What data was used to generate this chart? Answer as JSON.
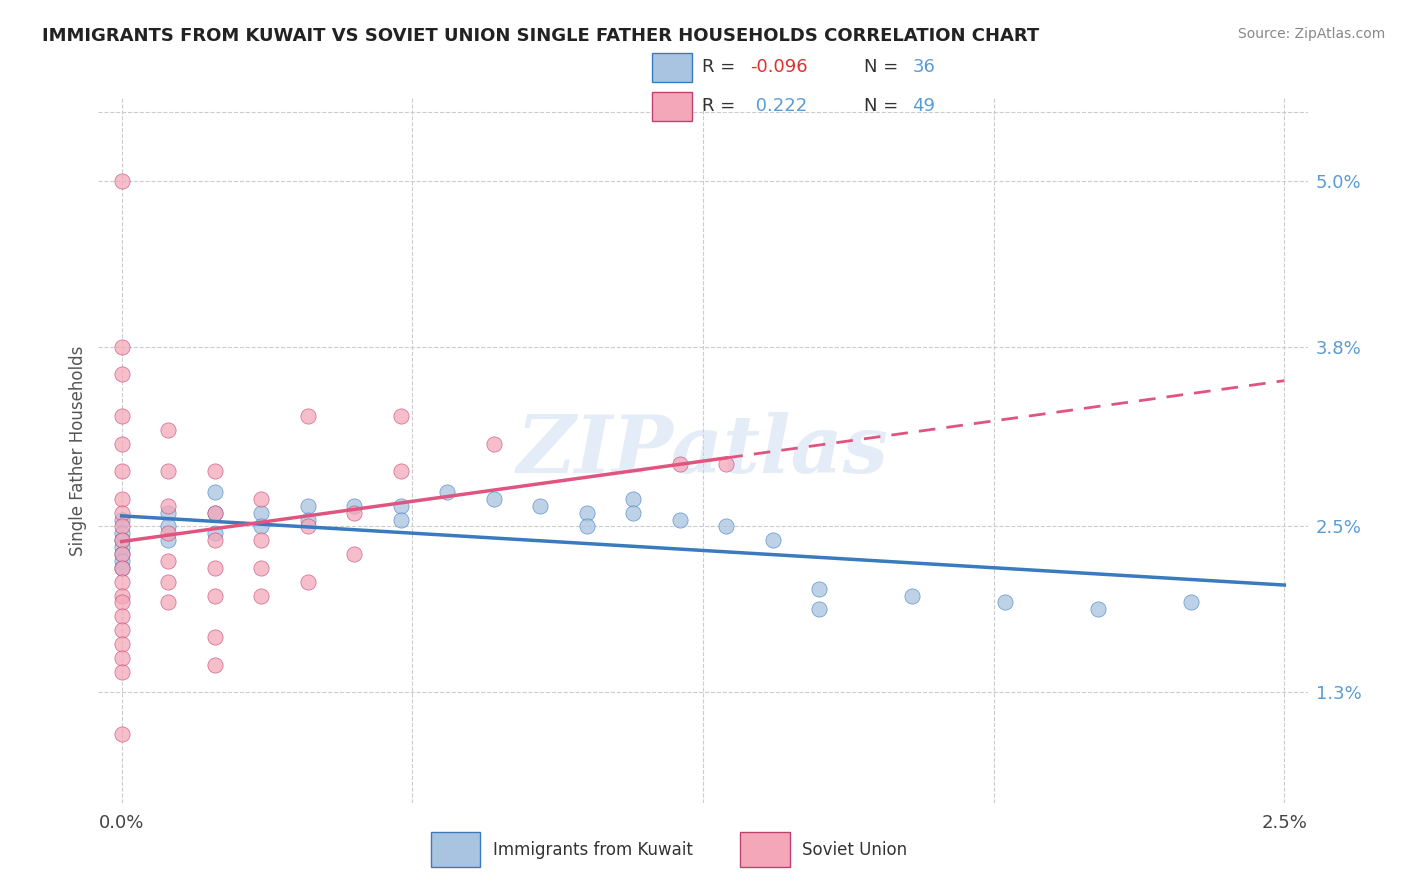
{
  "title": "IMMIGRANTS FROM KUWAIT VS SOVIET UNION SINGLE FATHER HOUSEHOLDS CORRELATION CHART",
  "source": "Source: ZipAtlas.com",
  "ylabel": "Single Father Households",
  "color_kuwait": "#a8c4e0",
  "color_soviet": "#f4a7b9",
  "line_color_kuwait": "#3a7abf",
  "line_color_soviet": "#e05580",
  "watermark": "ZIPatlas",
  "r_kuwait": -0.096,
  "n_kuwait": 36,
  "r_soviet": 0.222,
  "n_soviet": 49,
  "kuwait_points": [
    [
      0.0,
      0.0255
    ],
    [
      0.0,
      0.0245
    ],
    [
      0.0,
      0.024
    ],
    [
      0.0,
      0.0235
    ],
    [
      0.0,
      0.023
    ],
    [
      0.0,
      0.0225
    ],
    [
      0.0,
      0.022
    ],
    [
      0.001,
      0.026
    ],
    [
      0.001,
      0.025
    ],
    [
      0.001,
      0.024
    ],
    [
      0.002,
      0.0275
    ],
    [
      0.002,
      0.026
    ],
    [
      0.002,
      0.0245
    ],
    [
      0.003,
      0.026
    ],
    [
      0.003,
      0.025
    ],
    [
      0.004,
      0.0265
    ],
    [
      0.004,
      0.0255
    ],
    [
      0.005,
      0.0265
    ],
    [
      0.006,
      0.0265
    ],
    [
      0.006,
      0.0255
    ],
    [
      0.007,
      0.0275
    ],
    [
      0.008,
      0.027
    ],
    [
      0.009,
      0.0265
    ],
    [
      0.01,
      0.026
    ],
    [
      0.01,
      0.025
    ],
    [
      0.011,
      0.027
    ],
    [
      0.011,
      0.026
    ],
    [
      0.012,
      0.0255
    ],
    [
      0.013,
      0.025
    ],
    [
      0.014,
      0.024
    ],
    [
      0.015,
      0.0205
    ],
    [
      0.015,
      0.019
    ],
    [
      0.017,
      0.02
    ],
    [
      0.019,
      0.0195
    ],
    [
      0.021,
      0.019
    ],
    [
      0.023,
      0.0195
    ]
  ],
  "soviet_points": [
    [
      0.0,
      0.05
    ],
    [
      0.0,
      0.038
    ],
    [
      0.0,
      0.036
    ],
    [
      0.0,
      0.033
    ],
    [
      0.0,
      0.031
    ],
    [
      0.0,
      0.029
    ],
    [
      0.0,
      0.027
    ],
    [
      0.0,
      0.026
    ],
    [
      0.0,
      0.025
    ],
    [
      0.0,
      0.024
    ],
    [
      0.0,
      0.023
    ],
    [
      0.0,
      0.022
    ],
    [
      0.0,
      0.021
    ],
    [
      0.0,
      0.02
    ],
    [
      0.0,
      0.0195
    ],
    [
      0.0,
      0.0185
    ],
    [
      0.0,
      0.0175
    ],
    [
      0.0,
      0.0165
    ],
    [
      0.0,
      0.0155
    ],
    [
      0.0,
      0.0145
    ],
    [
      0.0,
      0.01
    ],
    [
      0.001,
      0.032
    ],
    [
      0.001,
      0.029
    ],
    [
      0.001,
      0.0265
    ],
    [
      0.001,
      0.0245
    ],
    [
      0.001,
      0.0225
    ],
    [
      0.001,
      0.021
    ],
    [
      0.001,
      0.0195
    ],
    [
      0.002,
      0.029
    ],
    [
      0.002,
      0.026
    ],
    [
      0.002,
      0.024
    ],
    [
      0.002,
      0.022
    ],
    [
      0.002,
      0.02
    ],
    [
      0.002,
      0.017
    ],
    [
      0.002,
      0.015
    ],
    [
      0.003,
      0.027
    ],
    [
      0.003,
      0.024
    ],
    [
      0.003,
      0.022
    ],
    [
      0.003,
      0.02
    ],
    [
      0.004,
      0.033
    ],
    [
      0.004,
      0.025
    ],
    [
      0.004,
      0.021
    ],
    [
      0.005,
      0.026
    ],
    [
      0.005,
      0.023
    ],
    [
      0.006,
      0.033
    ],
    [
      0.006,
      0.029
    ],
    [
      0.008,
      0.031
    ],
    [
      0.012,
      0.0295
    ],
    [
      0.013,
      0.0295
    ]
  ],
  "xlim": [
    -0.0005,
    0.0255
  ],
  "ylim": [
    0.005,
    0.056
  ],
  "yticks": [
    0.013,
    0.025,
    0.038,
    0.05
  ],
  "ytick_labels": [
    "1.3%",
    "2.5%",
    "3.8%",
    "5.0%"
  ],
  "xticks": [
    0.0,
    0.025
  ],
  "xtick_labels": [
    "0.0%",
    "2.5%"
  ]
}
